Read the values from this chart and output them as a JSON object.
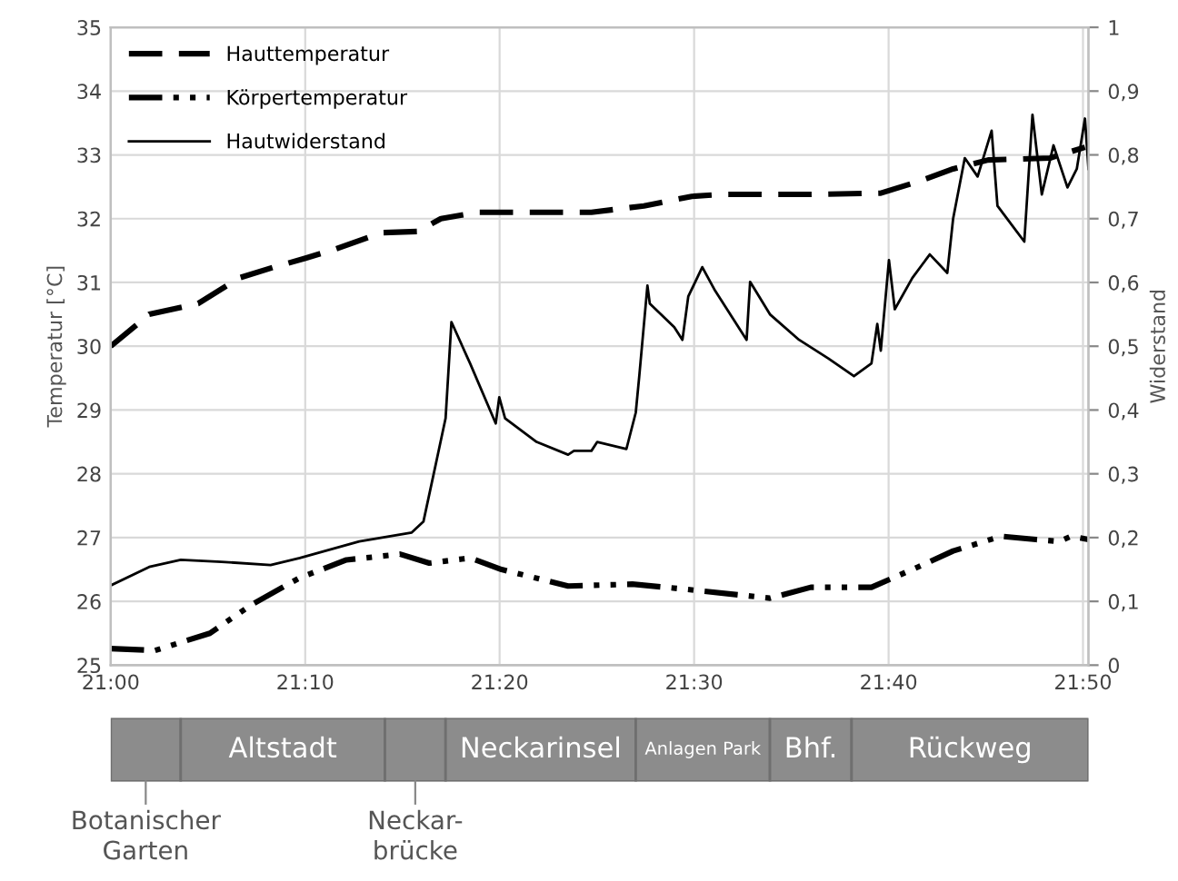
{
  "chart_data": [
    {
      "type": "line",
      "ylabel": "Temperatur [°C]",
      "y2label": "Widerstand",
      "xlim": [
        21,
        21.838
      ],
      "xticks": [
        {
          "value": 21,
          "label": "21:00"
        },
        {
          "value": 21.1667,
          "label": "21:10"
        },
        {
          "value": 21.3333,
          "label": "21:20"
        },
        {
          "value": 21.5,
          "label": "21:30"
        },
        {
          "value": 21.6667,
          "label": "21:40"
        },
        {
          "value": 21.8333,
          "label": "21:50"
        }
      ],
      "ylim": [
        25,
        35
      ],
      "yticks": [
        25,
        26,
        27,
        28,
        29,
        30,
        31,
        32,
        33,
        34,
        35
      ],
      "y2lim": [
        0,
        1
      ],
      "y2ticks": [
        0,
        {
          "value": 0.1,
          "label": "0,1"
        },
        {
          "value": 0.2,
          "label": "0,2"
        },
        {
          "value": 0.3,
          "label": "0,3"
        },
        {
          "value": 0.4,
          "label": "0,4"
        },
        {
          "value": 0.5,
          "label": "0,5"
        },
        {
          "value": 0.6,
          "label": "0,6"
        },
        {
          "value": 0.7,
          "label": "0,7"
        },
        {
          "value": 0.8,
          "label": "0,8"
        },
        {
          "value": 0.9,
          "label": "0,9"
        },
        1
      ],
      "grid": true,
      "legend": "top left",
      "marker": "none",
      "series": [
        {
          "name": "Hauttemperatur",
          "color": "#000000",
          "line_style": "dashed",
          "x": [
            21.0,
            21.033,
            21.075,
            21.11,
            21.14,
            21.167,
            21.192,
            21.232,
            21.263,
            21.283,
            21.315,
            21.397,
            21.412,
            21.457,
            21.498,
            21.523,
            21.6,
            21.66,
            21.692,
            21.722,
            21.752,
            21.805,
            21.835
          ],
          "values": [
            30.0,
            30.5,
            30.67,
            31.07,
            31.24,
            31.38,
            31.52,
            31.78,
            31.8,
            32.0,
            32.1,
            32.1,
            32.1,
            32.2,
            32.35,
            32.38,
            32.38,
            32.4,
            32.58,
            32.78,
            32.92,
            32.95,
            33.12
          ]
        },
        {
          "name": "Körpertemperatur",
          "color": "#000000",
          "line_style": "dashdot",
          "x": [
            21.0,
            21.038,
            21.085,
            21.12,
            21.162,
            21.202,
            21.248,
            21.273,
            21.308,
            21.335,
            21.392,
            21.447,
            21.498,
            21.565,
            21.6,
            21.652,
            21.692,
            21.722,
            21.763,
            21.793,
            21.813,
            21.823,
            21.838
          ],
          "values": [
            25.26,
            25.23,
            25.5,
            25.94,
            26.37,
            26.65,
            26.74,
            26.6,
            26.68,
            26.5,
            26.24,
            26.27,
            26.18,
            26.05,
            26.22,
            26.22,
            26.54,
            26.79,
            27.02,
            26.97,
            26.94,
            27.02,
            26.97
          ]
        },
        {
          "name": "Hautwiderstand",
          "color": "#000000",
          "line_style": "solid",
          "axis": "y2",
          "x": [
            21.0,
            21.033,
            21.06,
            21.095,
            21.137,
            21.162,
            21.213,
            21.258,
            21.268,
            21.278,
            21.287,
            21.292,
            21.308,
            21.33,
            21.333,
            21.338,
            21.365,
            21.392,
            21.397,
            21.412,
            21.417,
            21.442,
            21.45,
            21.453,
            21.46,
            21.462,
            21.483,
            21.49,
            21.495,
            21.507,
            21.518,
            21.545,
            21.548,
            21.565,
            21.59,
            21.615,
            21.637,
            21.652,
            21.657,
            21.66,
            21.667,
            21.672,
            21.687,
            21.702,
            21.717,
            21.722,
            21.732,
            21.743,
            21.755,
            21.76,
            21.783,
            21.79,
            21.798,
            21.808,
            21.82,
            21.828,
            21.835,
            21.838
          ],
          "values": [
            0.125,
            0.154,
            0.165,
            0.162,
            0.157,
            0.168,
            0.194,
            0.208,
            0.225,
            0.31,
            0.387,
            0.538,
            0.473,
            0.379,
            0.42,
            0.387,
            0.35,
            0.33,
            0.336,
            0.336,
            0.35,
            0.339,
            0.396,
            0.453,
            0.595,
            0.567,
            0.53,
            0.51,
            0.578,
            0.624,
            0.587,
            0.51,
            0.601,
            0.55,
            0.51,
            0.481,
            0.453,
            0.473,
            0.535,
            0.493,
            0.635,
            0.558,
            0.607,
            0.644,
            0.615,
            0.7,
            0.795,
            0.766,
            0.838,
            0.72,
            0.664,
            0.863,
            0.738,
            0.815,
            0.749,
            0.778,
            0.857,
            0.778
          ]
        }
      ]
    },
    {
      "type": "bar",
      "orientation": "horizontal",
      "categories": [
        null
      ],
      "xlim": [
        21,
        21.838
      ],
      "legend": "top left",
      "series": [
        {
          "name": "Botanischer Garten",
          "color": "#8c8c8c",
          "base": [
            21.0
          ],
          "values": [
            0.06
          ]
        },
        {
          "name": "Altstadt",
          "color": "#8c8c8c",
          "base": [
            21.06
          ],
          "values": [
            0.175
          ]
        },
        {
          "name": "Neckar-brücke",
          "color": "#8c8c8c",
          "base": [
            21.235
          ],
          "values": [
            0.052
          ]
        },
        {
          "name": "Neckarinsel",
          "color": "#8c8c8c",
          "base": [
            21.287
          ],
          "values": [
            0.163
          ]
        },
        {
          "name": "Anlagen Park",
          "color": "#8c8c8c",
          "base": [
            21.45
          ],
          "values": [
            0.115
          ]
        },
        {
          "name": "Bhf.",
          "color": "#8c8c8c",
          "base": [
            21.565
          ],
          "values": [
            0.07
          ]
        },
        {
          "name": "Rückweg",
          "color": "#8c8c8c",
          "base": [
            21.635
          ],
          "values": [
            0.203
          ]
        }
      ]
    }
  ]
}
